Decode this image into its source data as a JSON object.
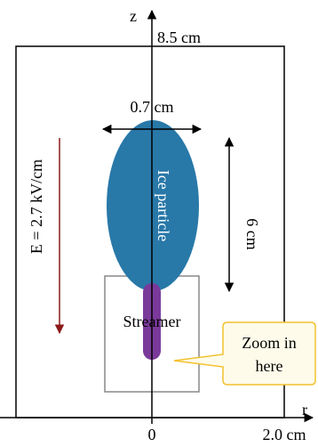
{
  "axes": {
    "z_label": "z",
    "r_label": "r",
    "origin_label": "0",
    "height_label": "8.5 cm",
    "width_label": "2.0 cm"
  },
  "field": {
    "label": "E = 2.7 kV/cm",
    "arrow_color": "#8b1a1a"
  },
  "particle": {
    "label": "Ice particle",
    "width_label": "0.7 cm",
    "length_label": "6 cm",
    "color": "#2878a8"
  },
  "streamer": {
    "label": "Streamer",
    "color": "#7a3a9a"
  },
  "zoom": {
    "callout_line1": "Zoom in",
    "callout_line2": "here",
    "box_border_color": "#f2c22e",
    "box_fill_color": "#fffbea"
  }
}
